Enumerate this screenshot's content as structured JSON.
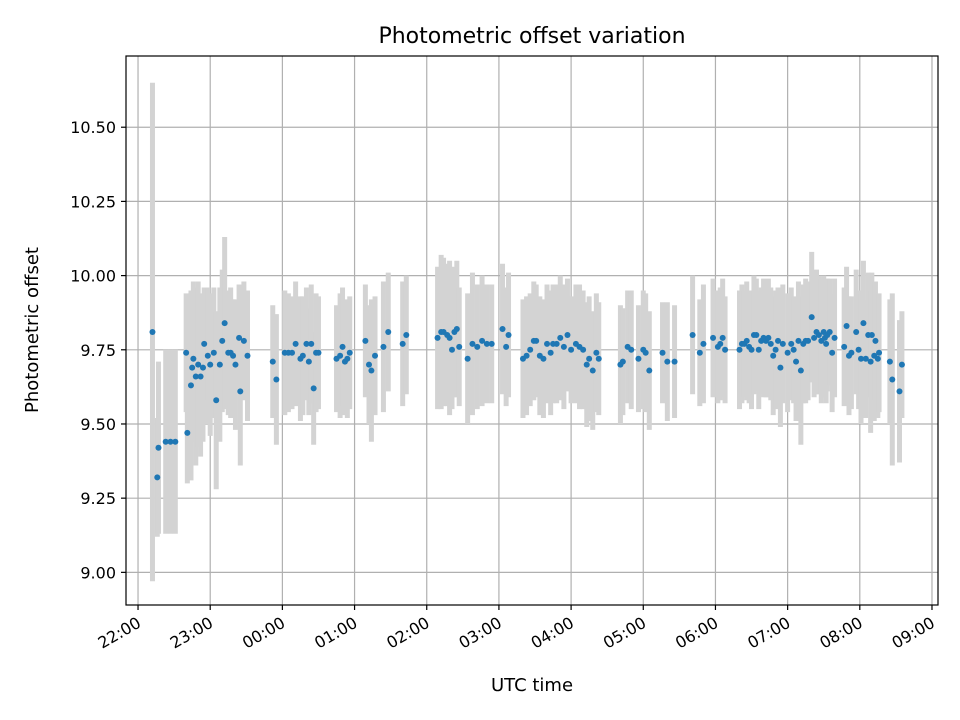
{
  "chart_data": {
    "type": "scatter",
    "title": "Photometric offset variation",
    "xlabel": "UTC time",
    "ylabel": "Photometric offset",
    "ylim": [
      8.89,
      10.74
    ],
    "xlim": [
      "21:50",
      "09:05"
    ],
    "x_day_start": "22:00",
    "grid": true,
    "x_ticks": [
      "22:00",
      "23:00",
      "00:00",
      "01:00",
      "02:00",
      "03:00",
      "04:00",
      "05:00",
      "06:00",
      "07:00",
      "08:00",
      "09:00"
    ],
    "y_ticks": [
      "9.00",
      "9.25",
      "9.50",
      "9.75",
      "10.00",
      "10.25",
      "10.50"
    ],
    "colors": {
      "points": "#1f77b4",
      "errorbars": "#d3d3d3",
      "grid": "#b0b0b0"
    },
    "series": [
      {
        "points": [
          [
            "22:12",
            9.81,
            0.84
          ],
          [
            "22:16",
            9.32,
            0.2
          ],
          [
            "22:17",
            9.42,
            0.29
          ],
          [
            "22:23",
            9.44,
            0.31
          ],
          [
            "22:27",
            9.44,
            0.31
          ],
          [
            "22:31",
            9.44,
            0.31
          ],
          [
            "22:40",
            9.74,
            0.2
          ],
          [
            "22:41",
            9.47,
            0.17
          ],
          [
            "22:44",
            9.63,
            0.32
          ],
          [
            "22:45",
            9.69,
            0.25
          ],
          [
            "22:46",
            9.72,
            0.26
          ],
          [
            "22:48",
            9.66,
            0.3
          ],
          [
            "22:50",
            9.7,
            0.28
          ],
          [
            "22:52",
            9.66,
            0.27
          ],
          [
            "22:54",
            9.69,
            0.25
          ],
          [
            "22:55",
            9.77,
            0.19
          ],
          [
            "22:58",
            9.73,
            0.23
          ],
          [
            "23:00",
            9.7,
            0.24
          ],
          [
            "23:03",
            9.74,
            0.22
          ],
          [
            "23:05",
            9.58,
            0.3
          ],
          [
            "23:08",
            9.7,
            0.26
          ],
          [
            "23:10",
            9.78,
            0.24
          ],
          [
            "23:12",
            9.84,
            0.29
          ],
          [
            "23:15",
            9.74,
            0.21
          ],
          [
            "23:17",
            9.74,
            0.22
          ],
          [
            "23:19",
            9.73,
            0.19
          ],
          [
            "23:21",
            9.7,
            0.22
          ],
          [
            "23:24",
            9.79,
            0.18
          ],
          [
            "23:25",
            9.61,
            0.25
          ],
          [
            "23:28",
            9.78,
            0.2
          ],
          [
            "23:31",
            9.73,
            0.22
          ],
          [
            "23:52",
            9.71,
            0.19
          ],
          [
            "23:55",
            9.65,
            0.22
          ],
          [
            "00:02",
            9.74,
            0.21
          ],
          [
            "00:05",
            9.74,
            0.2
          ],
          [
            "00:08",
            9.74,
            0.19
          ],
          [
            "00:11",
            9.77,
            0.21
          ],
          [
            "00:15",
            9.72,
            0.21
          ],
          [
            "00:17",
            9.73,
            0.2
          ],
          [
            "00:20",
            9.77,
            0.19
          ],
          [
            "00:22",
            9.71,
            0.18
          ],
          [
            "00:24",
            9.77,
            0.2
          ],
          [
            "00:26",
            9.62,
            0.19
          ],
          [
            "00:28",
            9.74,
            0.2
          ],
          [
            "00:30",
            9.74,
            0.19
          ],
          [
            "00:45",
            9.72,
            0.18
          ],
          [
            "00:48",
            9.73,
            0.21
          ],
          [
            "00:50",
            9.76,
            0.2
          ],
          [
            "00:52",
            9.71,
            0.18
          ],
          [
            "00:54",
            9.72,
            0.2
          ],
          [
            "00:56",
            9.74,
            0.19
          ],
          [
            "01:09",
            9.78,
            0.19
          ],
          [
            "01:12",
            9.7,
            0.2
          ],
          [
            "01:14",
            9.68,
            0.24
          ],
          [
            "01:17",
            9.73,
            0.2
          ],
          [
            "01:24",
            9.76,
            0.22
          ],
          [
            "01:28",
            9.81,
            0.2
          ],
          [
            "01:40",
            9.77,
            0.21
          ],
          [
            "01:43",
            9.8,
            0.2
          ],
          [
            "02:09",
            9.79,
            0.24
          ],
          [
            "02:12",
            9.81,
            0.26
          ],
          [
            "02:14",
            9.81,
            0.25
          ],
          [
            "02:17",
            9.8,
            0.24
          ],
          [
            "02:19",
            9.79,
            0.26
          ],
          [
            "02:21",
            9.75,
            0.2
          ],
          [
            "02:23",
            9.81,
            0.22
          ],
          [
            "02:25",
            9.82,
            0.23
          ],
          [
            "02:27",
            9.76,
            0.2
          ],
          [
            "02:34",
            9.72,
            0.22
          ],
          [
            "02:38",
            9.77,
            0.24
          ],
          [
            "02:42",
            9.76,
            0.21
          ],
          [
            "02:46",
            9.78,
            0.22
          ],
          [
            "02:50",
            9.77,
            0.2
          ],
          [
            "02:54",
            9.77,
            0.2
          ],
          [
            "03:03",
            9.82,
            0.22
          ],
          [
            "03:06",
            9.76,
            0.2
          ],
          [
            "03:08",
            9.8,
            0.21
          ],
          [
            "03:20",
            9.72,
            0.2
          ],
          [
            "03:23",
            9.73,
            0.2
          ],
          [
            "03:26",
            9.75,
            0.19
          ],
          [
            "03:29",
            9.78,
            0.2
          ],
          [
            "03:31",
            9.78,
            0.19
          ],
          [
            "03:34",
            9.73,
            0.2
          ],
          [
            "03:37",
            9.72,
            0.2
          ],
          [
            "03:40",
            9.77,
            0.2
          ],
          [
            "03:43",
            9.74,
            0.21
          ],
          [
            "03:45",
            9.77,
            0.2
          ],
          [
            "03:48",
            9.77,
            0.2
          ],
          [
            "03:51",
            9.79,
            0.21
          ],
          [
            "03:54",
            9.76,
            0.21
          ],
          [
            "03:57",
            9.8,
            0.19
          ],
          [
            "04:00",
            9.75,
            0.18
          ],
          [
            "04:04",
            9.77,
            0.2
          ],
          [
            "04:07",
            9.76,
            0.21
          ],
          [
            "04:10",
            9.75,
            0.2
          ],
          [
            "04:13",
            9.7,
            0.21
          ],
          [
            "04:15",
            9.72,
            0.21
          ],
          [
            "04:18",
            9.68,
            0.2
          ],
          [
            "04:21",
            9.74,
            0.2
          ],
          [
            "04:23",
            9.72,
            0.19
          ],
          [
            "04:41",
            9.7,
            0.2
          ],
          [
            "04:43",
            9.71,
            0.18
          ],
          [
            "04:47",
            9.76,
            0.19
          ],
          [
            "04:50",
            9.75,
            0.2
          ],
          [
            "04:56",
            9.72,
            0.18
          ],
          [
            "05:00",
            9.75,
            0.2
          ],
          [
            "05:02",
            9.74,
            0.2
          ],
          [
            "05:05",
            9.68,
            0.2
          ],
          [
            "05:16",
            9.74,
            0.17
          ],
          [
            "05:20",
            9.71,
            0.2
          ],
          [
            "05:26",
            9.71,
            0.19
          ],
          [
            "05:41",
            9.8,
            0.2
          ],
          [
            "05:47",
            9.74,
            0.18
          ],
          [
            "05:50",
            9.77,
            0.2
          ],
          [
            "05:58",
            9.79,
            0.2
          ],
          [
            "06:02",
            9.76,
            0.19
          ],
          [
            "06:04",
            9.77,
            0.19
          ],
          [
            "06:06",
            9.79,
            0.2
          ],
          [
            "06:08",
            9.75,
            0.18
          ],
          [
            "06:20",
            9.75,
            0.2
          ],
          [
            "06:22",
            9.77,
            0.2
          ],
          [
            "06:24",
            9.77,
            0.18
          ],
          [
            "06:26",
            9.78,
            0.2
          ],
          [
            "06:28",
            9.76,
            0.19
          ],
          [
            "06:30",
            9.75,
            0.2
          ],
          [
            "06:32",
            9.8,
            0.2
          ],
          [
            "06:34",
            9.8,
            0.19
          ],
          [
            "06:36",
            9.75,
            0.2
          ],
          [
            "06:38",
            9.78,
            0.18
          ],
          [
            "06:40",
            9.79,
            0.2
          ],
          [
            "06:42",
            9.78,
            0.19
          ],
          [
            "06:44",
            9.79,
            0.2
          ],
          [
            "06:46",
            9.77,
            0.19
          ],
          [
            "06:48",
            9.73,
            0.2
          ],
          [
            "06:50",
            9.75,
            0.2
          ],
          [
            "06:52",
            9.78,
            0.18
          ],
          [
            "06:54",
            9.69,
            0.2
          ],
          [
            "06:56",
            9.77,
            0.2
          ],
          [
            "07:00",
            9.74,
            0.2
          ],
          [
            "07:03",
            9.77,
            0.19
          ],
          [
            "07:05",
            9.75,
            0.18
          ],
          [
            "07:07",
            9.71,
            0.2
          ],
          [
            "07:09",
            9.78,
            0.2
          ],
          [
            "07:11",
            9.68,
            0.25
          ],
          [
            "07:13",
            9.77,
            0.2
          ],
          [
            "07:15",
            9.78,
            0.21
          ],
          [
            "07:17",
            9.78,
            0.2
          ],
          [
            "07:20",
            9.86,
            0.22
          ],
          [
            "07:22",
            9.79,
            0.2
          ],
          [
            "07:24",
            9.81,
            0.21
          ],
          [
            "07:26",
            9.8,
            0.2
          ],
          [
            "07:28",
            9.78,
            0.21
          ],
          [
            "07:30",
            9.81,
            0.19
          ],
          [
            "07:31",
            9.79,
            0.2
          ],
          [
            "07:32",
            9.77,
            0.2
          ],
          [
            "07:33",
            9.8,
            0.19
          ],
          [
            "07:35",
            9.81,
            0.18
          ],
          [
            "07:37",
            9.74,
            0.2
          ],
          [
            "07:39",
            9.79,
            0.2
          ],
          [
            "07:47",
            9.76,
            0.2
          ],
          [
            "07:49",
            9.83,
            0.2
          ],
          [
            "07:51",
            9.73,
            0.2
          ],
          [
            "07:53",
            9.74,
            0.19
          ],
          [
            "07:57",
            9.81,
            0.21
          ],
          [
            "07:59",
            9.75,
            0.2
          ],
          [
            "08:01",
            9.72,
            0.22
          ],
          [
            "08:03",
            9.84,
            0.21
          ],
          [
            "08:05",
            9.72,
            0.2
          ],
          [
            "08:07",
            9.8,
            0.21
          ],
          [
            "08:09",
            9.71,
            0.24
          ],
          [
            "08:10",
            9.8,
            0.21
          ],
          [
            "08:12",
            9.73,
            0.22
          ],
          [
            "08:13",
            9.78,
            0.2
          ],
          [
            "08:15",
            9.72,
            0.2
          ],
          [
            "08:16",
            9.74,
            0.2
          ],
          [
            "08:25",
            9.71,
            0.21
          ],
          [
            "08:27",
            9.65,
            0.29
          ],
          [
            "08:33",
            9.61,
            0.24
          ],
          [
            "08:35",
            9.7,
            0.18
          ]
        ]
      }
    ]
  }
}
